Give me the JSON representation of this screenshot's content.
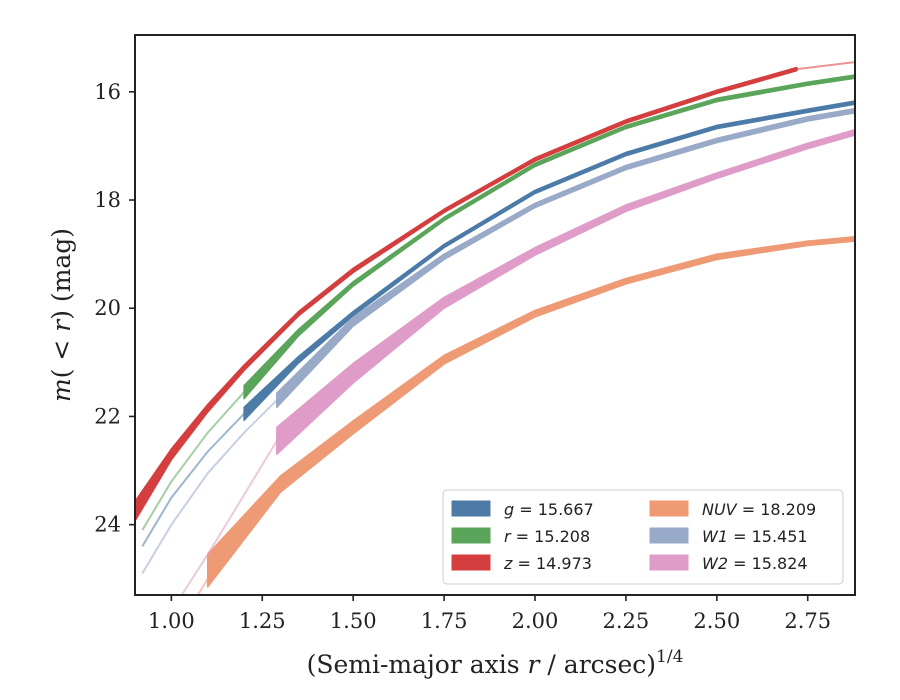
{
  "chart_data": {
    "type": "line",
    "title": "",
    "xlabel": "(Semi-major axis r / arcsec)",
    "xlabel_var": "r",
    "xlabel_pre": "(Semi-major axis ",
    "xlabel_post": " / arcsec)",
    "xlabel_sup": "1/4",
    "ylabel": "m(< r) (mag)",
    "ylabel_m": "m",
    "ylabel_mid": "( < ",
    "ylabel_r": "r",
    "ylabel_post": ") (mag)",
    "xlim": [
      0.9,
      2.88
    ],
    "ylim": [
      25.3,
      14.95
    ],
    "y_inverted": true,
    "xticks": [
      1.0,
      1.25,
      1.5,
      1.75,
      2.0,
      2.25,
      2.5,
      2.75
    ],
    "xtick_labels": [
      "1.00",
      "1.25",
      "1.50",
      "1.75",
      "2.00",
      "2.25",
      "2.50",
      "2.75"
    ],
    "yticks": [
      16,
      18,
      20,
      22,
      24
    ],
    "ytick_labels": [
      "16",
      "18",
      "20",
      "22",
      "24"
    ],
    "legend_position": "lower-right",
    "grid": false,
    "series": [
      {
        "key": "g",
        "var": "g",
        "label_value": "= 15.667",
        "color": "#4c7ba8",
        "faint": [
          [
            0.92,
            24.4
          ],
          [
            1.0,
            23.5
          ],
          [
            1.1,
            22.65
          ],
          [
            1.2,
            21.95
          ]
        ],
        "x": [
          1.2,
          1.35,
          1.5,
          1.75,
          2.0,
          2.25,
          2.5,
          2.75,
          2.88
        ],
        "y": [
          21.95,
          20.95,
          20.1,
          18.85,
          17.85,
          17.15,
          16.65,
          16.35,
          16.2
        ],
        "halfwidth": [
          0.12,
          0.06,
          0.04,
          0.03,
          0.03,
          0.03,
          0.03,
          0.03,
          0.03
        ]
      },
      {
        "key": "r",
        "var": "r",
        "label_value": "= 15.208",
        "color": "#5aa55a",
        "faint": [
          [
            0.92,
            24.1
          ],
          [
            1.0,
            23.2
          ],
          [
            1.1,
            22.3
          ],
          [
            1.2,
            21.55
          ]
        ],
        "x": [
          1.2,
          1.35,
          1.5,
          1.75,
          2.0,
          2.25,
          2.5,
          2.75,
          2.88
        ],
        "y": [
          21.55,
          20.45,
          19.55,
          18.35,
          17.35,
          16.65,
          16.15,
          15.85,
          15.72
        ],
        "halfwidth": [
          0.12,
          0.06,
          0.04,
          0.03,
          0.03,
          0.03,
          0.03,
          0.03,
          0.03
        ]
      },
      {
        "key": "z",
        "var": "z",
        "label_value": "= 14.973",
        "color": "#d53e3e",
        "faint": [
          [
            2.72,
            15.58
          ],
          [
            2.88,
            15.45
          ]
        ],
        "x": [
          0.9,
          1.0,
          1.1,
          1.2,
          1.35,
          1.5,
          1.75,
          2.0,
          2.25,
          2.5,
          2.72
        ],
        "y": [
          23.75,
          22.7,
          21.85,
          21.1,
          20.1,
          19.3,
          18.2,
          17.25,
          16.55,
          16.0,
          15.58
        ],
        "halfwidth": [
          0.18,
          0.1,
          0.07,
          0.05,
          0.04,
          0.04,
          0.03,
          0.03,
          0.03,
          0.03,
          0.03
        ]
      },
      {
        "key": "NUV",
        "var": "NUV",
        "label_value": "= 18.209",
        "color": "#ee9a74",
        "faint": [
          [
            0.92,
            27.0
          ],
          [
            1.0,
            26.1
          ],
          [
            1.1,
            25.0
          ]
        ],
        "x": [
          1.1,
          1.3,
          1.5,
          1.75,
          2.0,
          2.25,
          2.5,
          2.75,
          2.88
        ],
        "y": [
          24.85,
          23.25,
          22.2,
          20.95,
          20.1,
          19.5,
          19.05,
          18.8,
          18.72
        ],
        "halfwidth": [
          0.3,
          0.15,
          0.12,
          0.08,
          0.06,
          0.05,
          0.05,
          0.04,
          0.04
        ]
      },
      {
        "key": "W1",
        "var": "W1",
        "label_value": "= 15.451",
        "color": "#99aac8",
        "faint": [
          [
            0.92,
            24.9
          ],
          [
            1.0,
            24.0
          ],
          [
            1.1,
            23.05
          ],
          [
            1.2,
            22.3
          ],
          [
            1.29,
            21.7
          ]
        ],
        "x": [
          1.29,
          1.5,
          1.75,
          2.0,
          2.25,
          2.5,
          2.75,
          2.88
        ],
        "y": [
          21.7,
          20.25,
          19.05,
          18.1,
          17.4,
          16.9,
          16.5,
          16.35
        ],
        "halfwidth": [
          0.13,
          0.08,
          0.05,
          0.04,
          0.04,
          0.04,
          0.04,
          0.04
        ]
      },
      {
        "key": "W2",
        "var": "W2",
        "label_value": "= 15.824",
        "color": "#df9cc8",
        "faint": [
          [
            0.92,
            26.7
          ],
          [
            1.0,
            25.6
          ],
          [
            1.1,
            24.55
          ],
          [
            1.2,
            23.45
          ],
          [
            1.29,
            22.45
          ]
        ],
        "x": [
          1.29,
          1.5,
          1.75,
          2.0,
          2.25,
          2.5,
          2.75,
          2.88
        ],
        "y": [
          22.45,
          21.2,
          19.9,
          18.95,
          18.15,
          17.55,
          17.0,
          16.75
        ],
        "halfwidth": [
          0.25,
          0.18,
          0.1,
          0.07,
          0.06,
          0.05,
          0.05,
          0.05
        ]
      }
    ]
  }
}
